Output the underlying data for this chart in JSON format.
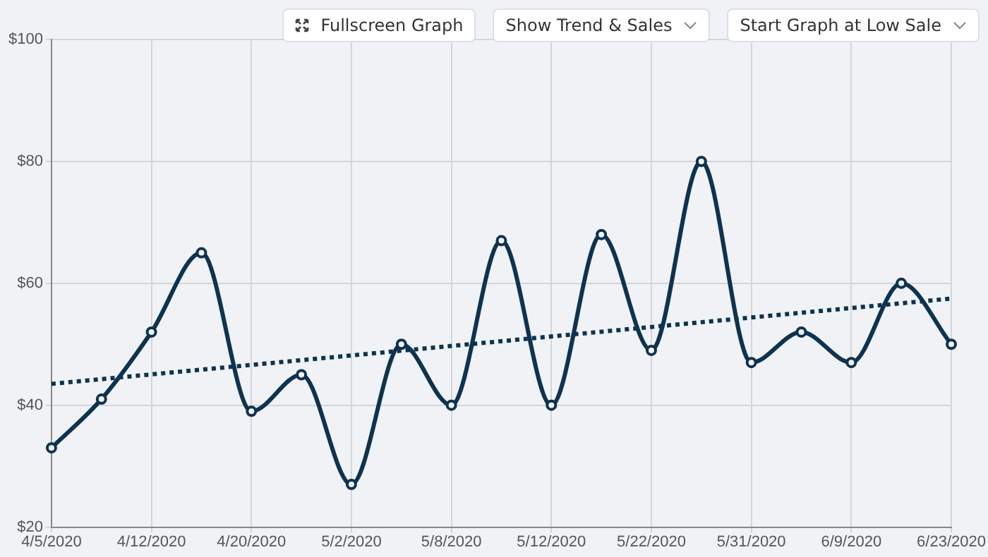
{
  "chart_data": {
    "type": "line",
    "categories": [
      "4/5/2020",
      null,
      "4/12/2020",
      null,
      "4/20/2020",
      null,
      "5/2/2020",
      null,
      "5/8/2020",
      null,
      "5/12/2020",
      null,
      "5/22/2020",
      null,
      "5/31/2020",
      null,
      "6/9/2020",
      null,
      "6/23/2020"
    ],
    "series": [
      {
        "color": "#0e3350",
        "values": [
          33,
          41,
          52,
          65,
          39,
          45,
          27,
          50,
          40,
          67,
          40,
          68,
          49,
          80,
          47,
          52,
          47,
          60,
          50
        ]
      },
      {
        "color": "#0e3350",
        "line_style": "dotted",
        "marker": "none",
        "values": [
          43.5,
          null,
          null,
          null,
          null,
          null,
          null,
          null,
          null,
          null,
          null,
          null,
          null,
          null,
          null,
          null,
          null,
          null,
          57.5
        ]
      }
    ],
    "ylim": [
      20,
      100
    ],
    "yticks": [
      {
        "value": 20,
        "label": "$20"
      },
      {
        "value": 40,
        "label": "$40"
      },
      {
        "value": 60,
        "label": "$60"
      },
      {
        "value": 80,
        "label": "$80"
      },
      {
        "value": 100,
        "label": "$100"
      }
    ],
    "grid": true,
    "legend": false,
    "marker": "circle",
    "line_style": "solid",
    "annotations": [
      "Fullscreen Graph",
      "Show Trend & Sales",
      "Start Graph at Low Sale"
    ]
  }
}
